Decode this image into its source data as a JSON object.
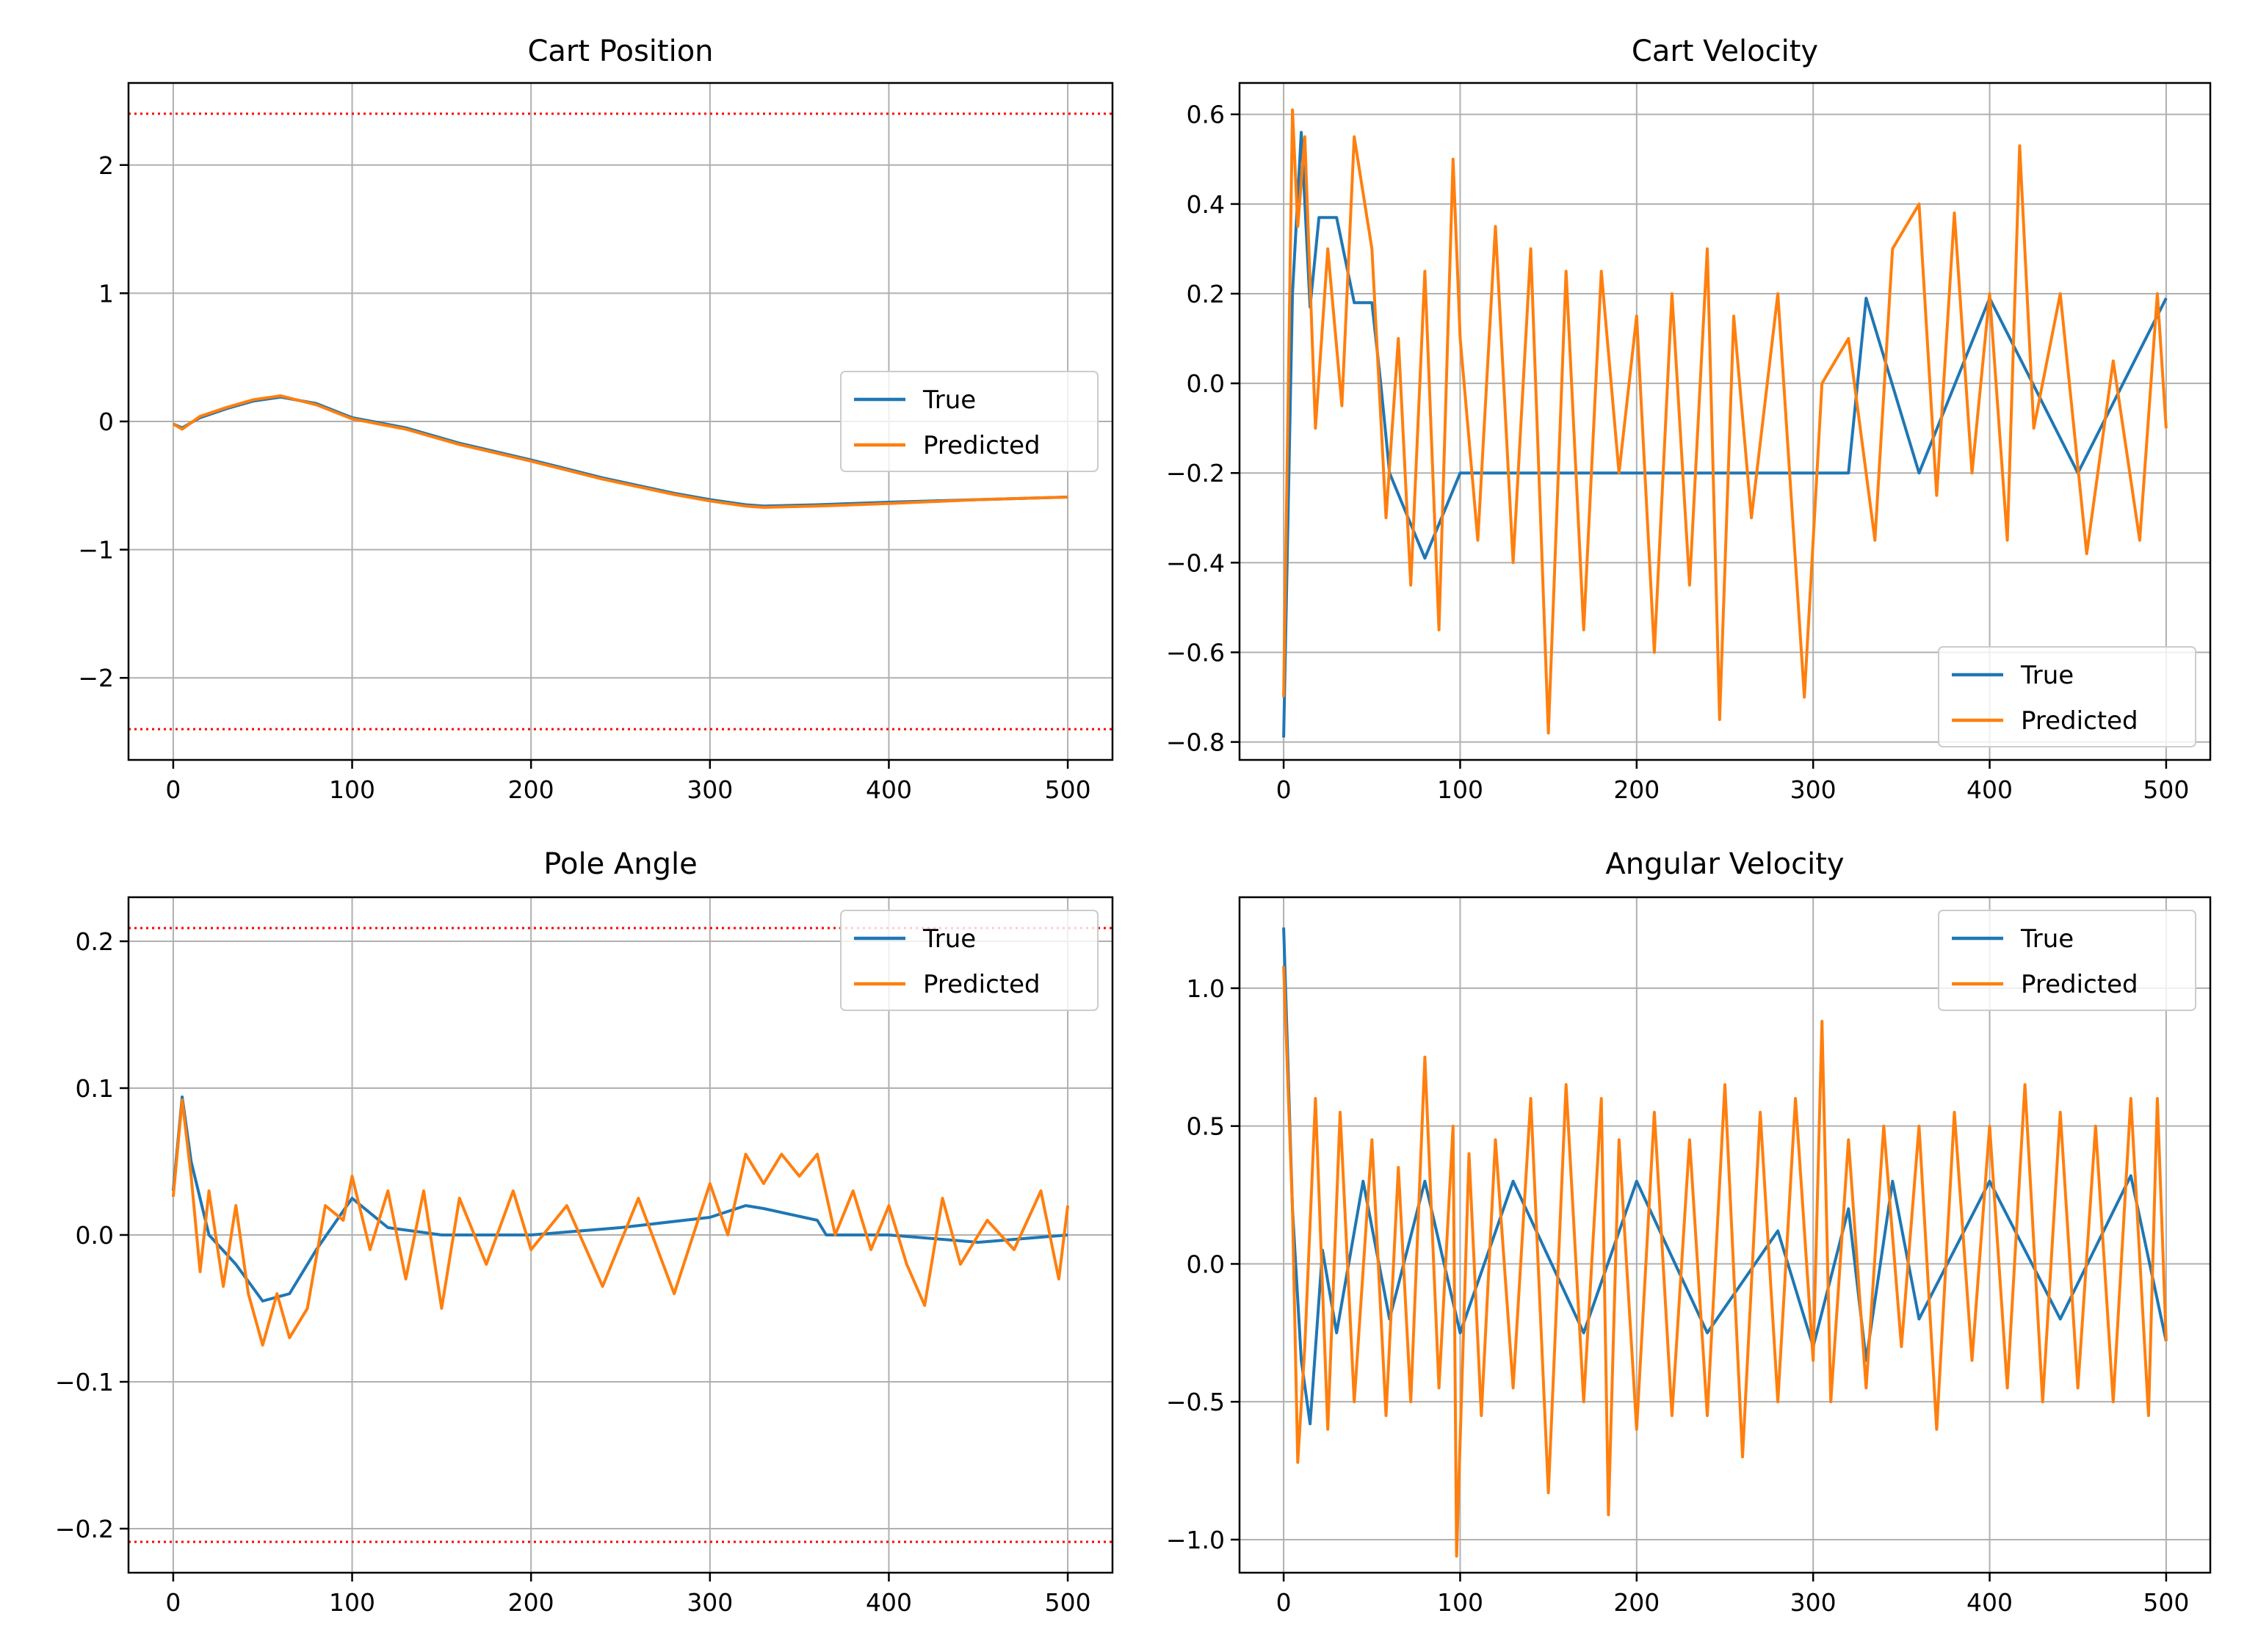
{
  "colors": {
    "true": "#1f77b4",
    "predicted": "#ff7f0e",
    "limit": "#ff0000",
    "grid": "#b0b0b0"
  },
  "legend": [
    "True",
    "Predicted"
  ],
  "chart_data": [
    {
      "id": "cart-position",
      "type": "line",
      "title": "Cart Position",
      "xlim": [
        -25,
        525
      ],
      "ylim": [
        -2.64,
        2.64
      ],
      "xticks": [
        0,
        100,
        200,
        300,
        400,
        500
      ],
      "yticks": [
        -2,
        -1,
        0,
        1,
        2
      ],
      "ytick_labels": [
        "−2",
        "−1",
        "0",
        "1",
        "2"
      ],
      "grid": true,
      "legend_loc": "center right",
      "limit_lines": [
        2.4,
        -2.4
      ],
      "series": [
        {
          "name": "True",
          "x": [
            0,
            5,
            15,
            30,
            45,
            60,
            80,
            100,
            130,
            160,
            200,
            240,
            280,
            300,
            320,
            330,
            360,
            400,
            450,
            500
          ],
          "y": [
            -0.02,
            -0.05,
            0.03,
            0.1,
            0.16,
            0.19,
            0.14,
            0.03,
            -0.05,
            -0.17,
            -0.3,
            -0.44,
            -0.56,
            -0.61,
            -0.65,
            -0.66,
            -0.65,
            -0.63,
            -0.61,
            -0.59
          ]
        },
        {
          "name": "Predicted",
          "x": [
            0,
            5,
            15,
            30,
            45,
            60,
            80,
            100,
            130,
            160,
            200,
            240,
            280,
            300,
            320,
            330,
            360,
            400,
            450,
            500
          ],
          "y": [
            -0.02,
            -0.06,
            0.04,
            0.11,
            0.17,
            0.2,
            0.13,
            0.02,
            -0.06,
            -0.18,
            -0.31,
            -0.45,
            -0.57,
            -0.62,
            -0.66,
            -0.67,
            -0.66,
            -0.64,
            -0.61,
            -0.59
          ]
        }
      ]
    },
    {
      "id": "cart-velocity",
      "type": "line",
      "title": "Cart Velocity",
      "xlim": [
        -25,
        525
      ],
      "ylim": [
        -0.84,
        0.67
      ],
      "xticks": [
        0,
        100,
        200,
        300,
        400,
        500
      ],
      "yticks": [
        -0.8,
        -0.6,
        -0.4,
        -0.2,
        0.0,
        0.2,
        0.4,
        0.6
      ],
      "ytick_labels": [
        "−0.8",
        "−0.6",
        "−0.4",
        "−0.2",
        "0.0",
        "0.2",
        "0.4",
        "0.6"
      ],
      "grid": true,
      "legend_loc": "lower right",
      "series": [
        {
          "name": "True",
          "x": [
            0,
            5,
            10,
            15,
            20,
            30,
            40,
            50,
            55,
            60,
            80,
            100,
            130,
            160,
            200,
            240,
            280,
            300,
            320,
            330,
            360,
            400,
            450,
            500
          ],
          "y": [
            -0.79,
            0.2,
            0.56,
            0.17,
            0.37,
            0.37,
            0.18,
            0.18,
            0.0,
            -0.2,
            -0.39,
            -0.2,
            -0.2,
            -0.2,
            -0.2,
            -0.2,
            -0.2,
            -0.2,
            -0.2,
            0.19,
            -0.2,
            0.19,
            -0.2,
            0.19
          ]
        },
        {
          "name": "Predicted",
          "x": [
            0,
            5,
            8,
            12,
            18,
            25,
            33,
            40,
            50,
            58,
            65,
            72,
            80,
            88,
            96,
            100,
            110,
            120,
            130,
            140,
            150,
            160,
            170,
            180,
            190,
            200,
            210,
            220,
            230,
            240,
            247,
            255,
            265,
            280,
            295,
            305,
            320,
            335,
            345,
            360,
            370,
            380,
            390,
            400,
            410,
            417,
            425,
            440,
            455,
            470,
            485,
            495,
            500
          ],
          "y": [
            -0.7,
            0.61,
            0.35,
            0.55,
            -0.1,
            0.3,
            -0.05,
            0.55,
            0.3,
            -0.3,
            0.1,
            -0.45,
            0.25,
            -0.55,
            0.5,
            0.1,
            -0.35,
            0.35,
            -0.4,
            0.3,
            -0.78,
            0.25,
            -0.55,
            0.25,
            -0.2,
            0.15,
            -0.6,
            0.2,
            -0.45,
            0.3,
            -0.75,
            0.15,
            -0.3,
            0.2,
            -0.7,
            0.0,
            0.1,
            -0.35,
            0.3,
            0.4,
            -0.25,
            0.38,
            -0.2,
            0.2,
            -0.35,
            0.53,
            -0.1,
            0.2,
            -0.38,
            0.05,
            -0.35,
            0.2,
            -0.1
          ]
        }
      ]
    },
    {
      "id": "pole-angle",
      "type": "line",
      "title": "Pole Angle",
      "xlim": [
        -25,
        525
      ],
      "ylim": [
        -0.23,
        0.23
      ],
      "xticks": [
        0,
        100,
        200,
        300,
        400,
        500
      ],
      "yticks": [
        -0.2,
        -0.1,
        0.0,
        0.1,
        0.2
      ],
      "ytick_labels": [
        "−0.2",
        "−0.1",
        "0.0",
        "0.1",
        "0.2"
      ],
      "grid": true,
      "legend_loc": "upper right",
      "limit_lines": [
        0.209,
        -0.209
      ],
      "series": [
        {
          "name": "True",
          "x": [
            0,
            5,
            10,
            20,
            35,
            50,
            65,
            80,
            100,
            120,
            150,
            200,
            250,
            300,
            320,
            330,
            360,
            365,
            400,
            450,
            500
          ],
          "y": [
            0.03,
            0.094,
            0.05,
            0.0,
            -0.02,
            -0.045,
            -0.04,
            -0.01,
            0.025,
            0.005,
            0.0,
            0.0,
            0.005,
            0.012,
            0.02,
            0.018,
            0.01,
            0.0,
            0.0,
            -0.005,
            0.0
          ]
        },
        {
          "name": "Predicted",
          "x": [
            0,
            5,
            10,
            15,
            20,
            28,
            35,
            42,
            50,
            58,
            65,
            75,
            85,
            95,
            100,
            110,
            120,
            130,
            140,
            150,
            160,
            175,
            190,
            200,
            220,
            240,
            260,
            280,
            300,
            310,
            320,
            330,
            340,
            350,
            360,
            370,
            380,
            390,
            400,
            410,
            420,
            430,
            440,
            455,
            470,
            485,
            495,
            500
          ],
          "y": [
            0.026,
            0.092,
            0.04,
            -0.025,
            0.03,
            -0.035,
            0.02,
            -0.04,
            -0.075,
            -0.04,
            -0.07,
            -0.05,
            0.02,
            0.01,
            0.04,
            -0.01,
            0.03,
            -0.03,
            0.03,
            -0.05,
            0.025,
            -0.02,
            0.03,
            -0.01,
            0.02,
            -0.035,
            0.025,
            -0.04,
            0.035,
            0.0,
            0.055,
            0.035,
            0.055,
            0.04,
            0.055,
            0.0,
            0.03,
            -0.01,
            0.02,
            -0.02,
            -0.048,
            0.025,
            -0.02,
            0.01,
            -0.01,
            0.03,
            -0.03,
            0.02
          ]
        }
      ]
    },
    {
      "id": "angular-velocity",
      "type": "line",
      "title": "Angular Velocity",
      "xlim": [
        -25,
        525
      ],
      "ylim": [
        -1.12,
        1.33
      ],
      "xticks": [
        0,
        100,
        200,
        300,
        400,
        500
      ],
      "yticks": [
        -1.0,
        -0.5,
        0.0,
        0.5,
        1.0
      ],
      "ytick_labels": [
        "−1.0",
        "−0.5",
        "0.0",
        "0.5",
        "1.0"
      ],
      "grid": true,
      "legend_loc": "upper right",
      "series": [
        {
          "name": "True",
          "x": [
            0,
            5,
            10,
            15,
            22,
            30,
            45,
            60,
            80,
            100,
            130,
            170,
            200,
            240,
            280,
            300,
            320,
            330,
            345,
            360,
            400,
            440,
            480,
            500
          ],
          "y": [
            1.22,
            0.2,
            -0.35,
            -0.58,
            0.05,
            -0.25,
            0.3,
            -0.2,
            0.3,
            -0.25,
            0.3,
            -0.25,
            0.3,
            -0.25,
            0.12,
            -0.3,
            0.2,
            -0.35,
            0.3,
            -0.2,
            0.3,
            -0.2,
            0.32,
            -0.28
          ]
        },
        {
          "name": "Predicted",
          "x": [
            0,
            5,
            8,
            12,
            18,
            25,
            32,
            40,
            50,
            58,
            65,
            72,
            80,
            88,
            96,
            98,
            105,
            112,
            120,
            130,
            140,
            150,
            160,
            170,
            180,
            184,
            190,
            200,
            210,
            220,
            230,
            240,
            250,
            260,
            270,
            280,
            290,
            300,
            305,
            310,
            320,
            330,
            340,
            350,
            360,
            370,
            380,
            390,
            400,
            410,
            420,
            430,
            440,
            450,
            460,
            470,
            480,
            490,
            495,
            500
          ],
          "y": [
            1.08,
            0.2,
            -0.72,
            -0.3,
            0.6,
            -0.6,
            0.55,
            -0.5,
            0.45,
            -0.55,
            0.35,
            -0.5,
            0.75,
            -0.45,
            0.5,
            -1.06,
            0.4,
            -0.55,
            0.45,
            -0.45,
            0.6,
            -0.83,
            0.65,
            -0.5,
            0.6,
            -0.91,
            0.45,
            -0.6,
            0.55,
            -0.55,
            0.45,
            -0.55,
            0.65,
            -0.7,
            0.55,
            -0.5,
            0.6,
            -0.35,
            0.88,
            -0.5,
            0.45,
            -0.45,
            0.5,
            -0.3,
            0.5,
            -0.6,
            0.55,
            -0.35,
            0.5,
            -0.45,
            0.65,
            -0.5,
            0.55,
            -0.45,
            0.5,
            -0.5,
            0.6,
            -0.55,
            0.6,
            -0.28
          ]
        }
      ]
    }
  ]
}
